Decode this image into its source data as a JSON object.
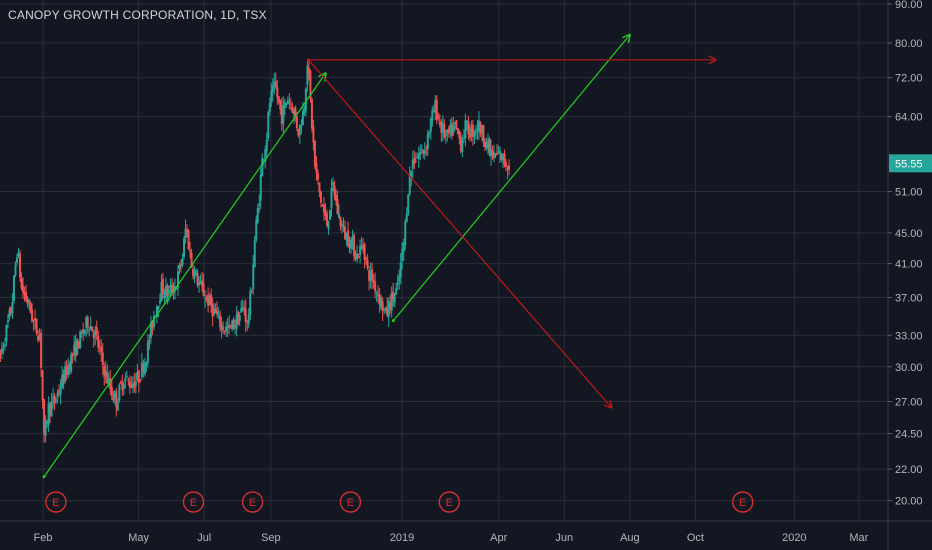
{
  "header": {
    "title": "CANOPY GROWTH CORPORATION, 1D, TSX"
  },
  "theme": {
    "background": "#131722",
    "grid": "#2a2e39",
    "text": "#b2b5be",
    "up": "#26a69a",
    "down": "#ef5350",
    "price_badge": "#26a69a",
    "trend_green": "#22d11f",
    "trend_red": "#c01818",
    "earnings": "#d32f2f"
  },
  "chart_data": {
    "type": "candlestick",
    "title": "CANOPY GROWTH CORPORATION, 1D, TSX",
    "y_scale": "log",
    "ylim": [
      19.5,
      90
    ],
    "x_ticks": [
      "Feb",
      "May",
      "Jul",
      "Sep",
      "2019",
      "Apr",
      "Jun",
      "Aug",
      "Oct",
      "2020",
      "Mar"
    ],
    "x_tick_dates": [
      "2018-02-01",
      "2018-05-01",
      "2018-07-01",
      "2018-09-01",
      "2019-01-01",
      "2019-04-01",
      "2019-06-01",
      "2019-08-01",
      "2019-10-01",
      "2020-01-01",
      "2020-03-01"
    ],
    "y_ticks": [
      "90.00",
      "80.00",
      "72.00",
      "64.00",
      "51.00",
      "45.00",
      "41.00",
      "37.00",
      "33.00",
      "30.00",
      "27.00",
      "24.50",
      "22.00",
      "20.00"
    ],
    "last_price": "55.55",
    "last_price_value": 55.55,
    "grid": true,
    "series_path": [
      [
        "2017-12-22",
        30.5
      ],
      [
        "2017-12-28",
        33.0
      ],
      [
        "2018-01-03",
        36.0
      ],
      [
        "2018-01-08",
        43.0
      ],
      [
        "2018-01-12",
        38.0
      ],
      [
        "2018-01-18",
        36.5
      ],
      [
        "2018-01-24",
        34.0
      ],
      [
        "2018-01-29",
        33.0
      ],
      [
        "2018-02-02",
        24.0
      ],
      [
        "2018-02-06",
        26.5
      ],
      [
        "2018-02-12",
        27.0
      ],
      [
        "2018-02-20",
        29.0
      ],
      [
        "2018-02-28",
        31.0
      ],
      [
        "2018-03-07",
        32.5
      ],
      [
        "2018-03-15",
        34.5
      ],
      [
        "2018-03-22",
        33.0
      ],
      [
        "2018-03-29",
        30.0
      ],
      [
        "2018-04-05",
        28.0
      ],
      [
        "2018-04-10",
        27.0
      ],
      [
        "2018-04-17",
        29.0
      ],
      [
        "2018-04-24",
        28.5
      ],
      [
        "2018-05-01",
        29.0
      ],
      [
        "2018-05-08",
        31.0
      ],
      [
        "2018-05-15",
        35.0
      ],
      [
        "2018-05-22",
        38.0
      ],
      [
        "2018-05-29",
        37.5
      ],
      [
        "2018-06-05",
        38.5
      ],
      [
        "2018-06-11",
        42.0
      ],
      [
        "2018-06-14",
        46.0
      ],
      [
        "2018-06-19",
        41.0
      ],
      [
        "2018-06-26",
        38.5
      ],
      [
        "2018-07-03",
        37.0
      ],
      [
        "2018-07-10",
        35.5
      ],
      [
        "2018-07-17",
        34.0
      ],
      [
        "2018-07-24",
        33.5
      ],
      [
        "2018-07-31",
        34.5
      ],
      [
        "2018-08-07",
        36.0
      ],
      [
        "2018-08-10",
        34.0
      ],
      [
        "2018-08-14",
        38.0
      ],
      [
        "2018-08-17",
        44.0
      ],
      [
        "2018-08-21",
        50.0
      ],
      [
        "2018-08-24",
        56.0
      ],
      [
        "2018-08-28",
        60.0
      ],
      [
        "2018-08-31",
        67.0
      ],
      [
        "2018-09-05",
        70.0
      ],
      [
        "2018-09-11",
        64.0
      ],
      [
        "2018-09-17",
        68.0
      ],
      [
        "2018-09-21",
        66.0
      ],
      [
        "2018-09-27",
        61.0
      ],
      [
        "2018-10-02",
        66.0
      ],
      [
        "2018-10-05",
        76.0
      ],
      [
        "2018-10-09",
        63.0
      ],
      [
        "2018-10-12",
        55.0
      ],
      [
        "2018-10-17",
        50.0
      ],
      [
        "2018-10-23",
        46.0
      ],
      [
        "2018-10-29",
        52.0
      ],
      [
        "2018-11-02",
        48.0
      ],
      [
        "2018-11-08",
        45.0
      ],
      [
        "2018-11-14",
        44.0
      ],
      [
        "2018-11-20",
        42.0
      ],
      [
        "2018-11-26",
        43.5
      ],
      [
        "2018-11-30",
        40.0
      ],
      [
        "2018-12-05",
        39.0
      ],
      [
        "2018-12-11",
        37.0
      ],
      [
        "2018-12-17",
        35.0
      ],
      [
        "2018-12-21",
        36.5
      ],
      [
        "2018-12-28",
        38.0
      ],
      [
        "2019-01-03",
        44.0
      ],
      [
        "2019-01-07",
        52.0
      ],
      [
        "2019-01-11",
        56.0
      ],
      [
        "2019-01-16",
        57.0
      ],
      [
        "2019-01-22",
        58.0
      ],
      [
        "2019-01-28",
        63.0
      ],
      [
        "2019-02-01",
        66.0
      ],
      [
        "2019-02-06",
        62.0
      ],
      [
        "2019-02-12",
        60.0
      ],
      [
        "2019-02-19",
        62.0
      ],
      [
        "2019-02-25",
        59.0
      ],
      [
        "2019-03-01",
        62.0
      ],
      [
        "2019-03-07",
        61.0
      ],
      [
        "2019-03-13",
        62.5
      ],
      [
        "2019-03-19",
        60.0
      ],
      [
        "2019-03-22",
        58.0
      ],
      [
        "2019-03-28",
        56.5
      ],
      [
        "2019-04-02",
        57.0
      ],
      [
        "2019-04-08",
        55.5
      ],
      [
        "2019-04-11",
        55.55
      ]
    ],
    "trend_lines": [
      {
        "color": "green",
        "from": [
          "2018-02-02",
          21.5
        ],
        "to": [
          "2018-10-22",
          73.0
        ]
      },
      {
        "color": "green",
        "from": [
          "2018-12-24",
          34.5
        ],
        "to": [
          "2019-08-01",
          82.0
        ]
      },
      {
        "color": "red",
        "from": [
          "2018-10-06",
          76.0
        ],
        "to": [
          "2019-10-20",
          76.0
        ]
      },
      {
        "color": "red",
        "from": [
          "2018-10-06",
          76.0
        ],
        "to": [
          "2019-07-15",
          26.5
        ]
      }
    ],
    "earnings_markers": [
      {
        "label": "E",
        "date": "2018-02-13"
      },
      {
        "label": "E",
        "date": "2018-06-21"
      },
      {
        "label": "E",
        "date": "2018-08-15"
      },
      {
        "label": "E",
        "date": "2018-11-14"
      },
      {
        "label": "E",
        "date": "2019-02-14"
      },
      {
        "label": "E",
        "date": "2019-11-14"
      }
    ]
  }
}
